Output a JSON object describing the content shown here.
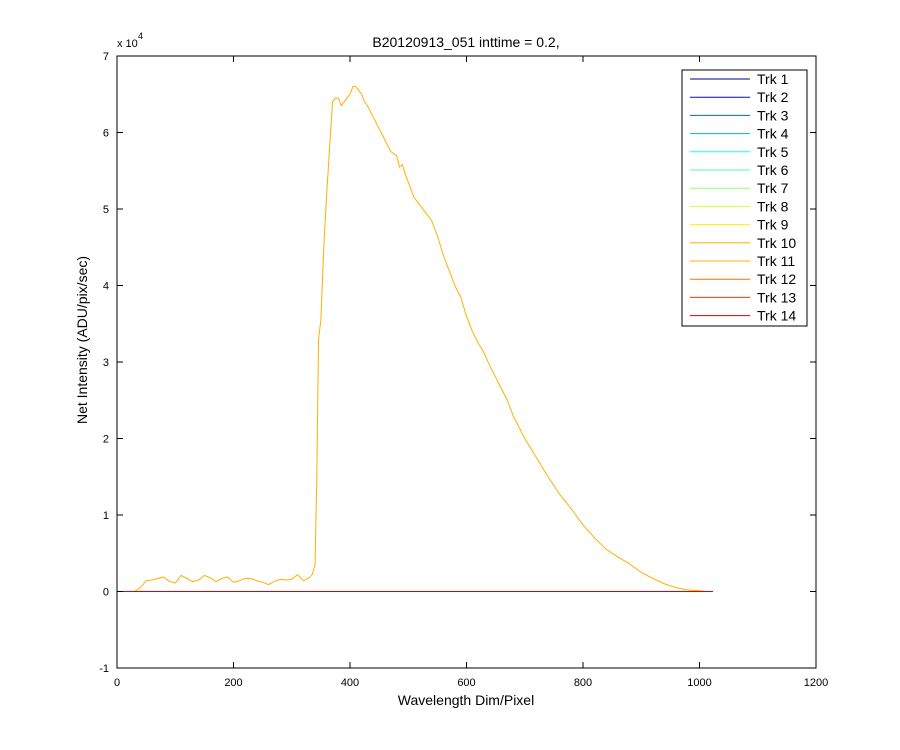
{
  "chart_data": {
    "type": "line",
    "title": "B20120913_051 inttime = 0.2,",
    "xlabel": "Wavelength Dim/Pixel",
    "ylabel": "Net Intensity (ADU/pix/sec)",
    "y_exponent_label": "x 10",
    "y_exponent_power": "4",
    "xlim": [
      0,
      1200
    ],
    "ylim": [
      -1,
      7
    ],
    "y_scale_factor": 10000,
    "xticks": [
      "0",
      "200",
      "400",
      "600",
      "800",
      "1000",
      "1200"
    ],
    "yticks": [
      "-1",
      "0",
      "1",
      "2",
      "3",
      "4",
      "5",
      "6",
      "7"
    ],
    "grid": false,
    "legend_position": "top-right",
    "series": [
      {
        "name": "Trk 1",
        "color": "#00008F",
        "x": [
          0,
          1023
        ],
        "y": [
          0,
          0
        ]
      },
      {
        "name": "Trk 2",
        "color": "#0000EF",
        "x": [
          0,
          1023
        ],
        "y": [
          0,
          0
        ]
      },
      {
        "name": "Trk 3",
        "color": "#005FFF",
        "x": [
          0,
          1023
        ],
        "y": [
          0,
          0
        ]
      },
      {
        "name": "Trk 4",
        "color": "#00AFFF",
        "x": [
          0,
          1023
        ],
        "y": [
          0,
          0
        ]
      },
      {
        "name": "Trk 5",
        "color": "#0FFFEF",
        "x": [
          0,
          1023
        ],
        "y": [
          0,
          0
        ]
      },
      {
        "name": "Trk 6",
        "color": "#4FFFAF",
        "x": [
          0,
          1023
        ],
        "y": [
          0,
          0
        ]
      },
      {
        "name": "Trk 7",
        "color": "#8FFF6F",
        "x": [
          0,
          1023
        ],
        "y": [
          0,
          0
        ]
      },
      {
        "name": "Trk 8",
        "color": "#CFFF2F",
        "x": [
          0,
          1023
        ],
        "y": [
          0,
          0
        ]
      },
      {
        "name": "Trk 9",
        "color": "#FFEF00",
        "x": [
          0,
          1023
        ],
        "y": [
          0,
          0
        ]
      },
      {
        "name": "Trk 10",
        "color": "#FFAF00",
        "x": [
          0,
          1023
        ],
        "y": [
          0,
          0
        ]
      },
      {
        "name": "Trk 11",
        "color": "#FFB000",
        "x": [
          0,
          30,
          40,
          50,
          60,
          70,
          80,
          90,
          100,
          110,
          120,
          130,
          140,
          150,
          160,
          170,
          180,
          190,
          200,
          210,
          220,
          230,
          240,
          250,
          260,
          270,
          280,
          290,
          300,
          310,
          320,
          330,
          335,
          340,
          343,
          346,
          350,
          355,
          360,
          365,
          370,
          375,
          380,
          385,
          390,
          395,
          400,
          405,
          410,
          415,
          420,
          425,
          430,
          440,
          450,
          460,
          470,
          480,
          485,
          490,
          495,
          500,
          505,
          510,
          520,
          530,
          540,
          550,
          560,
          570,
          580,
          590,
          600,
          610,
          620,
          630,
          640,
          650,
          660,
          670,
          680,
          690,
          700,
          720,
          740,
          760,
          780,
          800,
          820,
          840,
          860,
          880,
          900,
          920,
          940,
          960,
          980,
          1000,
          1010,
          1023
        ],
        "y": [
          0,
          0,
          0.05,
          0.14,
          0.15,
          0.17,
          0.19,
          0.13,
          0.11,
          0.21,
          0.17,
          0.13,
          0.15,
          0.21,
          0.18,
          0.13,
          0.17,
          0.19,
          0.12,
          0.14,
          0.17,
          0.17,
          0.14,
          0.12,
          0.09,
          0.13,
          0.16,
          0.15,
          0.16,
          0.22,
          0.14,
          0.18,
          0.22,
          0.35,
          1.5,
          3.3,
          3.55,
          4.5,
          5.2,
          5.8,
          6.4,
          6.45,
          6.45,
          6.35,
          6.4,
          6.45,
          6.5,
          6.6,
          6.6,
          6.55,
          6.5,
          6.4,
          6.35,
          6.2,
          6.05,
          5.9,
          5.75,
          5.7,
          5.55,
          5.58,
          5.45,
          5.35,
          5.25,
          5.15,
          5.05,
          4.95,
          4.85,
          4.65,
          4.4,
          4.2,
          4.0,
          3.85,
          3.6,
          3.4,
          3.25,
          3.12,
          2.95,
          2.8,
          2.65,
          2.5,
          2.3,
          2.15,
          2.0,
          1.75,
          1.5,
          1.27,
          1.08,
          0.87,
          0.7,
          0.55,
          0.45,
          0.36,
          0.25,
          0.17,
          0.1,
          0.05,
          0.02,
          0.01,
          0.0,
          0.0
        ]
      },
      {
        "name": "Trk 12",
        "color": "#FF6F00",
        "x": [
          0,
          1023
        ],
        "y": [
          0,
          0
        ]
      },
      {
        "name": "Trk 13",
        "color": "#FF2F00",
        "x": [
          0,
          1023
        ],
        "y": [
          0,
          0
        ]
      },
      {
        "name": "Trk 14",
        "color": "#DF0000",
        "x": [
          0,
          1023
        ],
        "y": [
          0,
          0
        ]
      }
    ]
  }
}
